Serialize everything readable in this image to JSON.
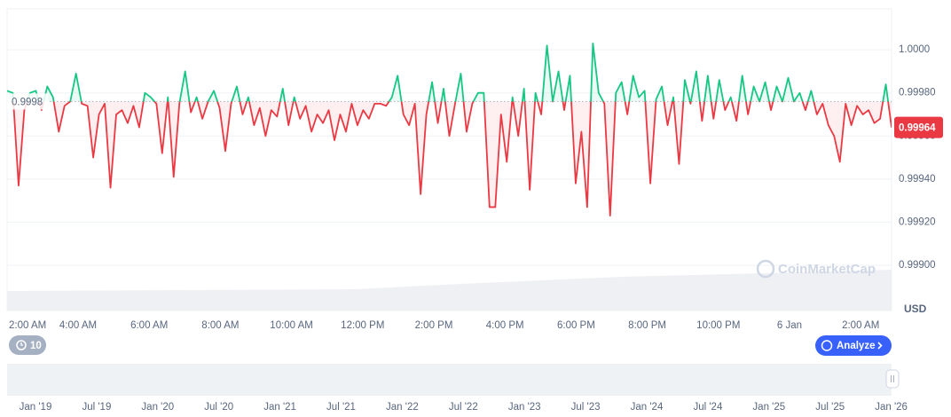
{
  "chart_data": {
    "type": "line",
    "values": [
      0.99981,
      0.9998,
      0.99937,
      0.99972,
      0.9998,
      0.99981,
      0.99972,
      0.99983,
      0.99978,
      0.99962,
      0.99974,
      0.99976,
      0.99989,
      0.99975,
      0.99974,
      0.9995,
      0.9997,
      0.99975,
      0.99936,
      0.9997,
      0.99972,
      0.99966,
      0.99974,
      0.99964,
      0.9998,
      0.99978,
      0.99975,
      0.99952,
      0.99978,
      0.99941,
      0.99975,
      0.9999,
      0.99971,
      0.99978,
      0.99968,
      0.99976,
      0.99981,
      0.99973,
      0.99953,
      0.99975,
      0.99983,
      0.9997,
      0.99978,
      0.99965,
      0.99973,
      0.9996,
      0.99972,
      0.99969,
      0.99982,
      0.99965,
      0.99978,
      0.99968,
      0.99974,
      0.99962,
      0.9997,
      0.99966,
      0.99972,
      0.99958,
      0.9997,
      0.99962,
      0.99975,
      0.99965,
      0.99972,
      0.99968,
      0.99975,
      0.99975,
      0.99974,
      0.99978,
      0.99988,
      0.9997,
      0.99965,
      0.99975,
      0.99933,
      0.9997,
      0.99985,
      0.99966,
      0.99982,
      0.9996,
      0.99975,
      0.99989,
      0.99962,
      0.99975,
      0.9998,
      0.9998,
      0.99927,
      0.99927,
      0.9997,
      0.99948,
      0.99978,
      0.9996,
      0.99982,
      0.99935,
      0.9998,
      0.9997,
      1.00002,
      0.99976,
      0.9999,
      0.99972,
      0.99988,
      0.99938,
      0.99962,
      0.99927,
      1.00003,
      0.9998,
      0.99975,
      0.99923,
      0.9998,
      0.99985,
      0.9997,
      0.99988,
      0.99978,
      0.99981,
      0.99938,
      0.99977,
      0.99983,
      0.99965,
      0.99978,
      0.99947,
      0.99986,
      0.99975,
      0.9999,
      0.99967,
      0.99988,
      0.99968,
      0.99986,
      0.99972,
      0.99978,
      0.99967,
      0.99988,
      0.9997,
      0.99983,
      0.99976,
      0.99985,
      0.99972,
      0.99983,
      0.99976,
      0.99987,
      0.99976,
      0.9998,
      0.99972,
      0.99981,
      0.9997,
      0.99975,
      0.99965,
      0.9996,
      0.99948,
      0.99975,
      0.99965,
      0.99974,
      0.9997,
      0.99972,
      0.99966,
      0.99968,
      0.99984,
      0.99964
    ],
    "color_up": "#16c784",
    "color_down": "#ea3943",
    "ylim": [
      0.99879,
      1.00019
    ],
    "yticks": [
      {
        "value": 0.999,
        "label": "0.99900"
      },
      {
        "value": 0.9992,
        "label": "0.99920"
      },
      {
        "value": 0.9994,
        "label": "0.99940"
      },
      {
        "value": 0.9996,
        "label": "0.99960"
      },
      {
        "value": 0.9998,
        "label": "0.99980"
      },
      {
        "value": 1.0,
        "label": "1.0000"
      }
    ],
    "grid": true,
    "baseline": {
      "value": 0.99976,
      "label": "0.9998"
    },
    "current": 0.99964,
    "time_ticks": [
      "2:00 AM",
      "4:00 AM",
      "6:00 AM",
      "8:00 AM",
      "10:00 AM",
      "12:00 PM",
      "2:00 PM",
      "4:00 PM",
      "6:00 PM",
      "8:00 PM",
      "10:00 PM",
      "6 Jan",
      "2:00 AM"
    ],
    "currency": "USD"
  },
  "ui": {
    "watermark": "CoinMarketCap",
    "history_button": "10",
    "analyze_button": "Analyze",
    "navigator_labels": [
      "Jan '19",
      "Jul '19",
      "Jan '20",
      "Jul '20",
      "Jan '21",
      "Jul '21",
      "Jan '22",
      "Jul '22",
      "Jan '23",
      "Jul '23",
      "Jan '24",
      "Jul '24",
      "Jan '25",
      "Jul '25",
      "Jan '26"
    ]
  }
}
